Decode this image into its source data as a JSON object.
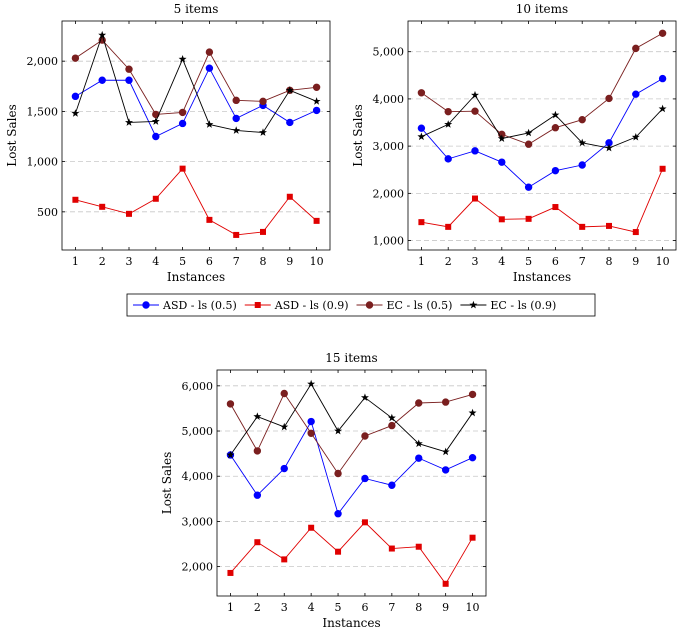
{
  "legend": {
    "entries": [
      {
        "label": "ASD -  ls (0.5)",
        "color": "#0000ff",
        "marker": "circle"
      },
      {
        "label": "ASD -  ls (0.9)",
        "color": "#e00000",
        "marker": "square"
      },
      {
        "label": "EC -  ls (0.5)",
        "color": "#7a1f1f",
        "marker": "circle"
      },
      {
        "label": "EC -  ls (0.9)",
        "color": "#000000",
        "marker": "star"
      }
    ]
  },
  "chart_data": [
    {
      "type": "line",
      "title": "5 items",
      "xlabel": "Instances",
      "ylabel": "Lost Sales",
      "x": [
        1,
        2,
        3,
        4,
        5,
        6,
        7,
        8,
        9,
        10
      ],
      "xlim": [
        0.5,
        10.5
      ],
      "ylim": [
        120,
        2400
      ],
      "yticks": [
        500,
        1000,
        1500,
        2000
      ],
      "yticklabels": [
        "500",
        "1,000",
        "1,500",
        "2,000"
      ],
      "grid": "horizontal dashed",
      "series": [
        {
          "name": "ASD -  ls (0.5)",
          "values": [
            1650,
            1810,
            1810,
            1250,
            1380,
            1930,
            1430,
            1560,
            1390,
            1510
          ]
        },
        {
          "name": "ASD -  ls (0.9)",
          "values": [
            620,
            550,
            480,
            630,
            930,
            420,
            270,
            300,
            650,
            410
          ]
        },
        {
          "name": "EC -  ls (0.5)",
          "values": [
            2030,
            2210,
            1920,
            1470,
            1490,
            2090,
            1610,
            1600,
            1710,
            1740
          ]
        },
        {
          "name": "EC -  ls (0.9)",
          "values": [
            1480,
            2260,
            1390,
            1400,
            2020,
            1370,
            1310,
            1290,
            1710,
            1600
          ]
        }
      ]
    },
    {
      "type": "line",
      "title": "10 items",
      "xlabel": "Instances",
      "ylabel": "Lost Sales",
      "x": [
        1,
        2,
        3,
        4,
        5,
        6,
        7,
        8,
        9,
        10
      ],
      "xlim": [
        0.5,
        10.5
      ],
      "ylim": [
        800,
        5650
      ],
      "yticks": [
        1000,
        2000,
        3000,
        4000,
        5000
      ],
      "yticklabels": [
        "1,000",
        "2,000",
        "3,000",
        "4,000",
        "5,000"
      ],
      "grid": "horizontal dashed",
      "series": [
        {
          "name": "ASD -  ls (0.5)",
          "values": [
            3380,
            2730,
            2900,
            2660,
            2130,
            2480,
            2600,
            3070,
            4100,
            4430
          ]
        },
        {
          "name": "ASD -  ls (0.9)",
          "values": [
            1390,
            1290,
            1890,
            1450,
            1460,
            1710,
            1290,
            1310,
            1180,
            2520
          ]
        },
        {
          "name": "EC -  ls (0.5)",
          "values": [
            4130,
            3730,
            3740,
            3250,
            3040,
            3390,
            3560,
            4010,
            5070,
            5390
          ]
        },
        {
          "name": "EC -  ls (0.9)",
          "values": [
            3200,
            3460,
            4080,
            3160,
            3280,
            3660,
            3070,
            2960,
            3190,
            3790
          ]
        }
      ]
    },
    {
      "type": "line",
      "title": "15 items",
      "xlabel": "Instances",
      "ylabel": "Lost Sales",
      "x": [
        1,
        2,
        3,
        4,
        5,
        6,
        7,
        8,
        9,
        10
      ],
      "xlim": [
        0.5,
        10.5
      ],
      "ylim": [
        1350,
        6350
      ],
      "yticks": [
        2000,
        3000,
        4000,
        5000,
        6000
      ],
      "yticklabels": [
        "2,000",
        "3,000",
        "4,000",
        "5,000",
        "6,000"
      ],
      "grid": "horizontal dashed",
      "series": [
        {
          "name": "ASD -  ls (0.5)",
          "values": [
            4470,
            3580,
            4170,
            5210,
            3170,
            3950,
            3800,
            4400,
            4140,
            4410
          ]
        },
        {
          "name": "ASD -  ls (0.9)",
          "values": [
            1860,
            2540,
            2160,
            2860,
            2330,
            2980,
            2400,
            2440,
            1620,
            2640
          ]
        },
        {
          "name": "EC -  ls (0.5)",
          "values": [
            5600,
            4560,
            5830,
            4950,
            4060,
            4890,
            5120,
            5620,
            5640,
            5810
          ]
        },
        {
          "name": "EC -  ls (0.9)",
          "values": [
            4470,
            5320,
            5090,
            6040,
            5000,
            5740,
            5290,
            4720,
            4540,
            5400
          ]
        }
      ]
    }
  ]
}
